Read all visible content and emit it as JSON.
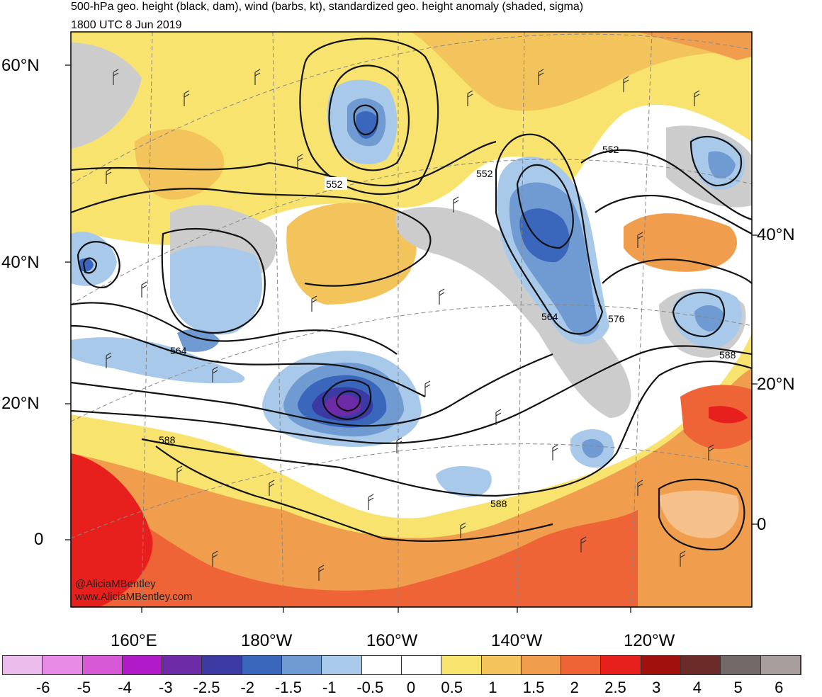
{
  "header": {
    "title": "500-hPa geo. height (black, dam), wind (barbs, kt), standardized geo. height anomaly (shaded, sigma)",
    "valid_time": "1800 UTC 8 Jun 2019"
  },
  "map": {
    "left_lat_labels": [
      "60°N",
      "40°N",
      "20°N",
      "0"
    ],
    "right_lat_labels": [
      "40°N",
      "20°N",
      "0"
    ],
    "lon_labels": [
      "160°E",
      "180°W",
      "160°W",
      "140°W",
      "120°W"
    ],
    "contour_labels": [
      "552",
      "552",
      "552",
      "564",
      "564",
      "576",
      "588",
      "588",
      "588"
    ],
    "credit_handle": "@AliciaMBentley",
    "credit_url": "www.AliciaMBentley.com"
  },
  "colorbar": {
    "labels": [
      "-6",
      "-5",
      "-4",
      "-3",
      "-2.5",
      "-2",
      "-1.5",
      "-1",
      "-0.5",
      "0",
      "0.5",
      "1",
      "1.5",
      "2",
      "2.5",
      "3",
      "4",
      "5",
      "6"
    ],
    "colors": [
      "#ecbdec",
      "#e88be6",
      "#d859d6",
      "#b01ac8",
      "#6e2ba8",
      "#3b3aa3",
      "#3a67bc",
      "#6f9ad2",
      "#a9c9ea",
      "#ffffff",
      "#ffffff",
      "#f8e36f",
      "#f2c45b",
      "#f09e4d",
      "#ee6437",
      "#e8201d",
      "#a0110d",
      "#6b2b28",
      "#736a68",
      "#a79d9c"
    ]
  }
}
